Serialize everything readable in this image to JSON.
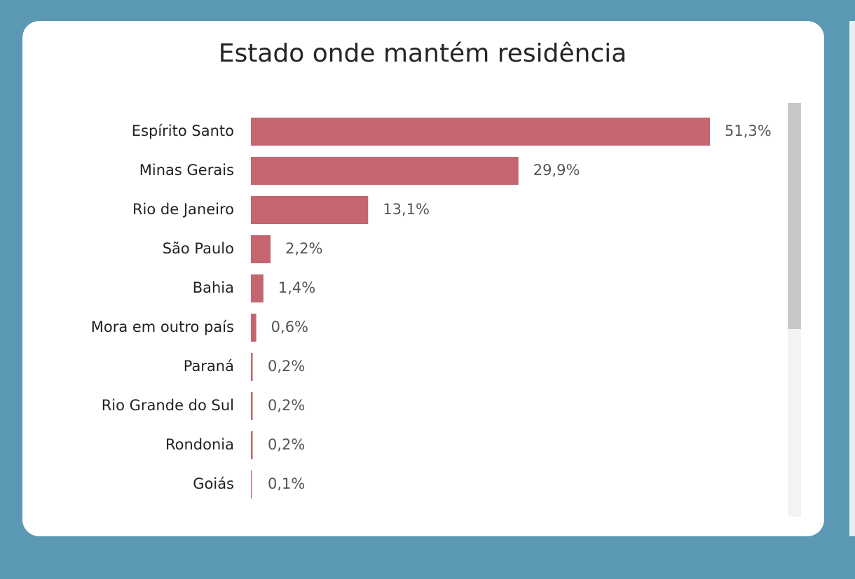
{
  "chart_data": {
    "type": "bar",
    "orientation": "horizontal",
    "title": "Estado onde mantém residência",
    "categories": [
      "Espírito Santo",
      "Minas Gerais",
      "Rio de Janeiro",
      "São Paulo",
      "Bahia",
      "Mora em outro país",
      "Paraná",
      "Rio Grande do Sul",
      "Rondonia",
      "Goiás"
    ],
    "values": [
      51.3,
      29.9,
      13.1,
      2.2,
      1.4,
      0.6,
      0.2,
      0.2,
      0.2,
      0.1
    ],
    "value_labels": [
      "51,3%",
      "29,9%",
      "13,1%",
      "2,2%",
      "1,4%",
      "0,6%",
      "0,2%",
      "0,2%",
      "0,2%",
      "0,1%"
    ],
    "color": "#c56570"
  }
}
